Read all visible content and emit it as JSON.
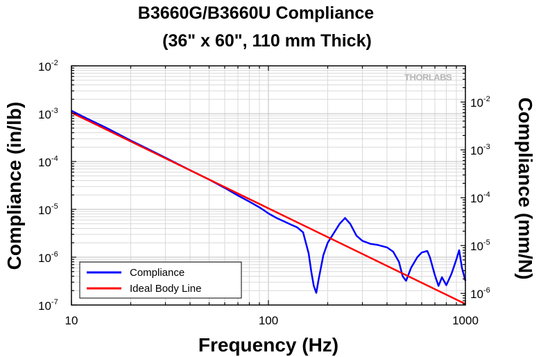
{
  "chart_data": {
    "type": "line",
    "title": "B3660G/B3660U Compliance",
    "subtitle": "(36\" x 60\", 110 mm Thick)",
    "xlabel": "Frequency (Hz)",
    "ylabel": "Compliance (in/lb)",
    "y2label": "Compliance (mm/N)",
    "x_scale": "log",
    "y_scale": "log",
    "xlim": [
      10,
      1000
    ],
    "ylim": [
      1e-07,
      0.01
    ],
    "y2lim": [
      5.71e-07,
      0.0571
    ],
    "grid": true,
    "legend_position": "bottom-left",
    "watermark": "THORLABS",
    "x_ticks": [
      {
        "v": 10,
        "label": "10"
      },
      {
        "v": 100,
        "label": "100"
      },
      {
        "v": 1000,
        "label": "1000"
      }
    ],
    "y_ticks": [
      {
        "v": 1e-07,
        "base": "10",
        "exp": "-7"
      },
      {
        "v": 1e-06,
        "base": "10",
        "exp": "-6"
      },
      {
        "v": 1e-05,
        "base": "10",
        "exp": "-5"
      },
      {
        "v": 0.0001,
        "base": "10",
        "exp": "-4"
      },
      {
        "v": 0.001,
        "base": "10",
        "exp": "-3"
      },
      {
        "v": 0.01,
        "base": "10",
        "exp": "-2"
      }
    ],
    "y2_ticks": [
      {
        "v": 1e-06,
        "base": "10",
        "exp": "-6"
      },
      {
        "v": 1e-05,
        "base": "10",
        "exp": "-5"
      },
      {
        "v": 0.0001,
        "base": "10",
        "exp": "-4"
      },
      {
        "v": 0.001,
        "base": "10",
        "exp": "-3"
      },
      {
        "v": 0.01,
        "base": "10",
        "exp": "-2"
      }
    ],
    "series": [
      {
        "name": "Compliance",
        "color": "#0000ff",
        "x": [
          10,
          12,
          15,
          20,
          25,
          30,
          40,
          50,
          60,
          70,
          80,
          90,
          95,
          100,
          110,
          120,
          130,
          140,
          150,
          160,
          165,
          170,
          175,
          180,
          190,
          200,
          215,
          230,
          245,
          260,
          280,
          300,
          330,
          360,
          400,
          430,
          460,
          480,
          500,
          530,
          570,
          600,
          640,
          660,
          700,
          730,
          760,
          800,
          850,
          900,
          930,
          960,
          1000
        ],
        "y": [
          0.00115,
          0.00079,
          0.00051,
          0.000275,
          0.000175,
          0.00012,
          6.6e-05,
          4.2e-05,
          2.8e-05,
          1.95e-05,
          1.45e-05,
          1.1e-05,
          9.5e-06,
          8.2e-06,
          6.6e-06,
          5.6e-06,
          4.8e-06,
          4.2e-06,
          3.3e-06,
          1.2e-06,
          5e-07,
          2.5e-07,
          1.8e-07,
          3.5e-07,
          1.1e-06,
          2e-06,
          3.2e-06,
          5e-06,
          6.6e-06,
          5e-06,
          2.8e-06,
          2.2e-06,
          1.9e-06,
          1.8e-06,
          1.6e-06,
          1.3e-06,
          8e-07,
          4e-07,
          3.2e-07,
          6e-07,
          1e-06,
          1.25e-06,
          1.35e-06,
          1e-06,
          4.2e-07,
          2.5e-07,
          3.8e-07,
          2.6e-07,
          4.5e-07,
          9e-07,
          1.4e-06,
          6e-07,
          3.2e-07
        ]
      },
      {
        "name": "Ideal Body Line",
        "color": "#ff0000",
        "x": [
          10,
          1000
        ],
        "y": [
          0.00105,
          1.05e-07
        ]
      }
    ]
  }
}
